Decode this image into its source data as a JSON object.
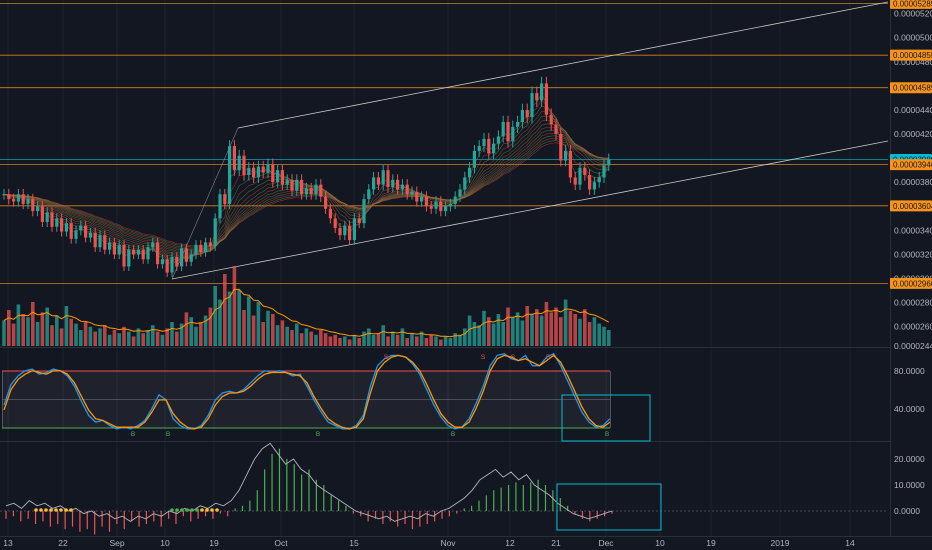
{
  "chart_data": [
    {
      "type": "candlestick",
      "panel": "price",
      "x_labels": [
        "13",
        "22",
        "Sep",
        "10",
        "19",
        "Oct",
        "15",
        "Nov",
        "12",
        "21",
        "Dec",
        "10",
        "19",
        "2019",
        "14"
      ],
      "y_ticks": [
        "0.00005200",
        "0.00005000",
        "0.00004800",
        "0.00004600",
        "0.00004400",
        "0.00004200",
        "0.00004000",
        "0.00003800",
        "0.00003600",
        "0.00003400",
        "0.00003200",
        "0.00003000",
        "0.00002800",
        "0.00002600",
        "0.00002440"
      ],
      "ylim": [
        2.44e-05,
        5.28e-05
      ],
      "price_levels": [
        {
          "label": "0.00005285",
          "value": 5.285e-05,
          "color": "#f7931a"
        },
        {
          "label": "0.00004855",
          "value": 4.855e-05,
          "color": "#f7931a"
        },
        {
          "label": "0.00004585",
          "value": 4.585e-05,
          "color": "#f7931a"
        },
        {
          "label": "0.00003989",
          "value": 3.989e-05,
          "color": "#00bcd4"
        },
        {
          "label": "0.00003946",
          "value": 3.946e-05,
          "color": "#f7931a"
        },
        {
          "label": "0.00003604",
          "value": 3.604e-05,
          "color": "#f7931a"
        },
        {
          "label": "0.00002960",
          "value": 2.96e-05,
          "color": "#f7931a"
        }
      ],
      "close_series": [
        3.7,
        3.66,
        3.64,
        3.7,
        3.62,
        3.66,
        3.56,
        3.6,
        3.47,
        3.55,
        3.43,
        3.5,
        3.39,
        3.46,
        3.33,
        3.4,
        3.44,
        3.34,
        3.38,
        3.26,
        3.36,
        3.24,
        3.3,
        3.2,
        3.28,
        3.1,
        3.24,
        3.2,
        3.24,
        3.16,
        3.26,
        3.3,
        3.12,
        3.16,
        3.05,
        3.18,
        3.1,
        3.25,
        3.14,
        3.2,
        3.28,
        3.22,
        3.3,
        3.27,
        3.5,
        3.7,
        3.62,
        4.1,
        3.9,
        4.02,
        3.86,
        3.92,
        3.84,
        3.93,
        3.88,
        3.95,
        3.8,
        3.9,
        3.78,
        3.82,
        3.73,
        3.82,
        3.7,
        3.75,
        3.7,
        3.78,
        3.68,
        3.58,
        3.5,
        3.42,
        3.36,
        3.44,
        3.32,
        3.5,
        3.46,
        3.66,
        3.74,
        3.84,
        3.78,
        3.9,
        3.76,
        3.82,
        3.74,
        3.78,
        3.7,
        3.72,
        3.64,
        3.68,
        3.6,
        3.58,
        3.64,
        3.56,
        3.6,
        3.62,
        3.68,
        3.74,
        3.84,
        3.92,
        4.06,
        4.1,
        4.16,
        4.04,
        4.12,
        4.18,
        4.3,
        4.14,
        4.26,
        4.3,
        4.4,
        4.34,
        4.54,
        4.48,
        4.62,
        4.36,
        4.28,
        4.2,
        3.98,
        4.06,
        3.84,
        3.78,
        3.92,
        3.86,
        3.74,
        3.8,
        3.84,
        3.94,
        3.99
      ],
      "ribbon_fill_note": "",
      "volume_series": [
        32,
        45,
        28,
        52,
        40,
        36,
        55,
        30,
        42,
        48,
        26,
        38,
        22,
        50,
        34,
        28,
        20,
        30,
        24,
        18,
        22,
        26,
        14,
        20,
        16,
        24,
        18,
        12,
        22,
        16,
        20,
        26,
        18,
        14,
        22,
        30,
        18,
        28,
        42,
        36,
        24,
        30,
        38,
        48,
        75,
        58,
        90,
        68,
        100,
        70,
        45,
        62,
        38,
        55,
        30,
        44,
        40,
        26,
        32,
        24,
        20,
        28,
        16,
        22,
        18,
        14,
        20,
        16,
        12,
        14,
        10,
        12,
        8,
        14,
        10,
        18,
        22,
        14,
        16,
        26,
        12,
        18,
        14,
        22,
        10,
        16,
        12,
        18,
        10,
        14,
        12,
        8,
        12,
        10,
        16,
        14,
        22,
        38,
        30,
        26,
        44,
        36,
        28,
        40,
        30,
        48,
        36,
        42,
        32,
        50,
        40,
        46,
        38,
        55,
        42,
        48,
        36,
        58,
        44,
        40,
        34,
        46,
        30,
        36,
        28,
        24,
        20
      ]
    },
    {
      "type": "line",
      "panel": "stochastic",
      "series": [
        {
          "name": "",
          "color": "#2196f3",
          "values": [
            38,
            62,
            72,
            78,
            80,
            74,
            76,
            80,
            78,
            72,
            60,
            42,
            26,
            18,
            20,
            14,
            10,
            12,
            10,
            14,
            20,
            34,
            50,
            44,
            22,
            14,
            10,
            10,
            14,
            26,
            44,
            52,
            54,
            52,
            56,
            64,
            72,
            78,
            76,
            78,
            76,
            72,
            74,
            60,
            44,
            30,
            18,
            14,
            10,
            10,
            14,
            26,
            60,
            84,
            92,
            96,
            96,
            94,
            86,
            74,
            56,
            38,
            24,
            14,
            10,
            12,
            22,
            40,
            60,
            84,
            96,
            98,
            92,
            90,
            96,
            84,
            84,
            94,
            98,
            84,
            66,
            48,
            30,
            18,
            12,
            14,
            22
          ]
        },
        {
          "name": "",
          "color": "#ff9800",
          "values": [
            32,
            56,
            68,
            74,
            78,
            76,
            74,
            78,
            78,
            74,
            64,
            48,
            32,
            22,
            20,
            16,
            12,
            12,
            12,
            12,
            18,
            30,
            44,
            44,
            28,
            18,
            12,
            10,
            12,
            22,
            38,
            48,
            52,
            52,
            54,
            60,
            68,
            74,
            76,
            76,
            76,
            74,
            72,
            64,
            48,
            34,
            22,
            16,
            12,
            10,
            12,
            22,
            52,
            78,
            88,
            94,
            96,
            94,
            88,
            78,
            62,
            44,
            28,
            18,
            12,
            12,
            18,
            34,
            54,
            78,
            92,
            96,
            94,
            90,
            92,
            88,
            84,
            90,
            96,
            88,
            72,
            54,
            36,
            22,
            14,
            12,
            18
          ]
        }
      ],
      "y_ticks": [
        "80.0000",
        "40.0000"
      ],
      "ylim": [
        0,
        100
      ],
      "band": [
        20,
        80
      ],
      "signals": [
        {
          "label": "S",
          "color": "#ef5350",
          "pos": "top"
        },
        {
          "label": "S",
          "color": "#ef5350",
          "pos": "top"
        },
        {
          "label": "S",
          "color": "#ef5350",
          "pos": "top"
        },
        {
          "label": "S",
          "color": "#ef5350",
          "pos": "top"
        },
        {
          "label": "B",
          "color": "#4caf50",
          "pos": "bottom"
        },
        {
          "label": "B",
          "color": "#4caf50",
          "pos": "bottom"
        },
        {
          "label": "B",
          "color": "#4caf50",
          "pos": "bottom"
        },
        {
          "label": "B",
          "color": "#4caf50",
          "pos": "bottom"
        },
        {
          "label": "B",
          "color": "#4caf50",
          "pos": "bottom"
        }
      ]
    },
    {
      "type": "bar",
      "panel": "oscillator",
      "values": [
        -3,
        -2,
        -4,
        -3,
        -5,
        -4,
        -6,
        -5,
        -7,
        -6,
        -8,
        -7,
        -9,
        -6,
        -8,
        -5,
        -7,
        -4,
        -6,
        -5,
        -4,
        -6,
        -3,
        -5,
        -2,
        -4,
        -3,
        -2,
        -3,
        -1,
        -2,
        1,
        2,
        4,
        8,
        16,
        22,
        24,
        20,
        18,
        14,
        16,
        12,
        10,
        6,
        4,
        2,
        -1,
        -2,
        -4,
        -3,
        -5,
        -4,
        -6,
        -5,
        -7,
        -6,
        -5,
        -4,
        -3,
        -2,
        -1,
        1,
        2,
        4,
        6,
        8,
        9,
        10,
        11,
        10,
        11,
        12,
        10,
        8,
        5,
        2,
        -1,
        -3,
        -4,
        -3,
        -2,
        -1
      ],
      "line_values": [
        2,
        3,
        1,
        4,
        2,
        3,
        1,
        2,
        0,
        1,
        -1,
        0,
        -2,
        -1,
        -3,
        -2,
        -4,
        -2,
        -3,
        -1,
        -2,
        0,
        -1,
        1,
        0,
        2,
        1,
        3,
        2,
        4,
        8,
        14,
        20,
        24,
        26,
        22,
        18,
        20,
        16,
        14,
        10,
        8,
        6,
        4,
        2,
        0,
        -1,
        -2,
        -3,
        -2,
        -4,
        -3,
        -2,
        -3,
        -1,
        -2,
        0,
        1,
        3,
        5,
        8,
        12,
        14,
        16,
        13,
        15,
        12,
        14,
        10,
        8,
        6,
        3,
        1,
        -1,
        -2,
        -3,
        -2,
        -1,
        0
      ],
      "dots": [
        {
          "color": "#fbc02d",
          "count": 8
        },
        {
          "color": "#4caf50",
          "count": 6
        },
        {
          "color": "#fbc02d",
          "count": 4
        }
      ],
      "y_ticks": [
        "20.0000",
        "10.0000",
        "0.0000"
      ],
      "ylim": [
        -8,
        24
      ]
    }
  ],
  "colors": {
    "up": "#26a69a",
    "down": "#ef5350",
    "level": "#f7931a",
    "cyan": "#00bcd4",
    "channel": "#c8c8c8",
    "grid": "#1e222d"
  }
}
